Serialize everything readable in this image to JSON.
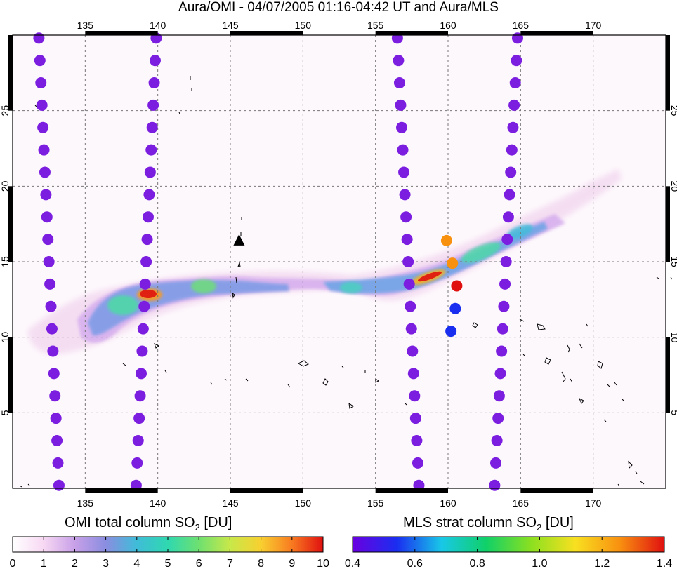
{
  "title": "Aura/OMI - 04/07/2005 01:16-04:42 UT and Aura/MLS",
  "map": {
    "lon_range": [
      130,
      175
    ],
    "lat_range": [
      0,
      30
    ],
    "lon_ticks": [
      135,
      140,
      145,
      150,
      155,
      160,
      165,
      170
    ],
    "lat_ticks": [
      5,
      10,
      15,
      20,
      25
    ],
    "volcano_marker": {
      "lon": 145.6,
      "lat": 16.4,
      "symbol": "triangle"
    }
  },
  "chart_data": {
    "type": "map",
    "omi_plume": [
      {
        "lon": [
          134.5,
          146.0
        ],
        "lat": [
          11.0,
          15.2
        ]
      },
      {
        "lon": [
          146.0,
          155.0
        ],
        "lat": [
          14.2,
          15.3
        ]
      },
      {
        "lon": [
          155.0,
          167.0
        ],
        "lat": [
          13.5,
          17.5
        ]
      }
    ],
    "mls_tracks": [
      {
        "lon": [
          131.8,
          133.2
        ],
        "lat": [
          30.0,
          0.0
        ]
      },
      {
        "lon": [
          139.9,
          138.5
        ],
        "lat": [
          30.0,
          0.0
        ]
      },
      {
        "lon": [
          156.5,
          158.0
        ],
        "lat": [
          30.0,
          0.0
        ]
      },
      {
        "lon": [
          164.8,
          163.2
        ],
        "lat": [
          30.0,
          0.0
        ]
      }
    ],
    "mls_highlight_points": [
      {
        "lon": 159.9,
        "lat": 16.4,
        "value": 1.25
      },
      {
        "lon": 160.3,
        "lat": 14.9,
        "value": 1.22
      },
      {
        "lon": 160.6,
        "lat": 13.4,
        "value": 1.35
      },
      {
        "lon": 160.5,
        "lat": 11.9,
        "value": 0.58
      },
      {
        "lon": 160.2,
        "lat": 10.4,
        "value": 0.5
      }
    ]
  },
  "colorbars": {
    "omi": {
      "label": "OMI total column SO",
      "sub": "2",
      "unit": " [DU]",
      "ticks": [
        "0",
        "1",
        "2",
        "3",
        "4",
        "5",
        "6",
        "7",
        "8",
        "9",
        "10"
      ],
      "colors": [
        "#ffffff",
        "#f7d8f3",
        "#c8a0e8",
        "#8a8de0",
        "#3fbcd8",
        "#2fd8b0",
        "#6ee070",
        "#c8e84a",
        "#f8d030",
        "#f87a20",
        "#e01010"
      ]
    },
    "mls": {
      "label": "MLS strat column SO",
      "sub": "2",
      "unit": " [DU]",
      "ticks": [
        "0.4",
        "0.6",
        "0.8",
        "1.0",
        "1.2",
        "1.4"
      ],
      "colors": [
        "#6a00e0",
        "#1a2ef0",
        "#18c8e8",
        "#10d068",
        "#8ae020",
        "#f8e020",
        "#f89010",
        "#e01010"
      ]
    }
  }
}
